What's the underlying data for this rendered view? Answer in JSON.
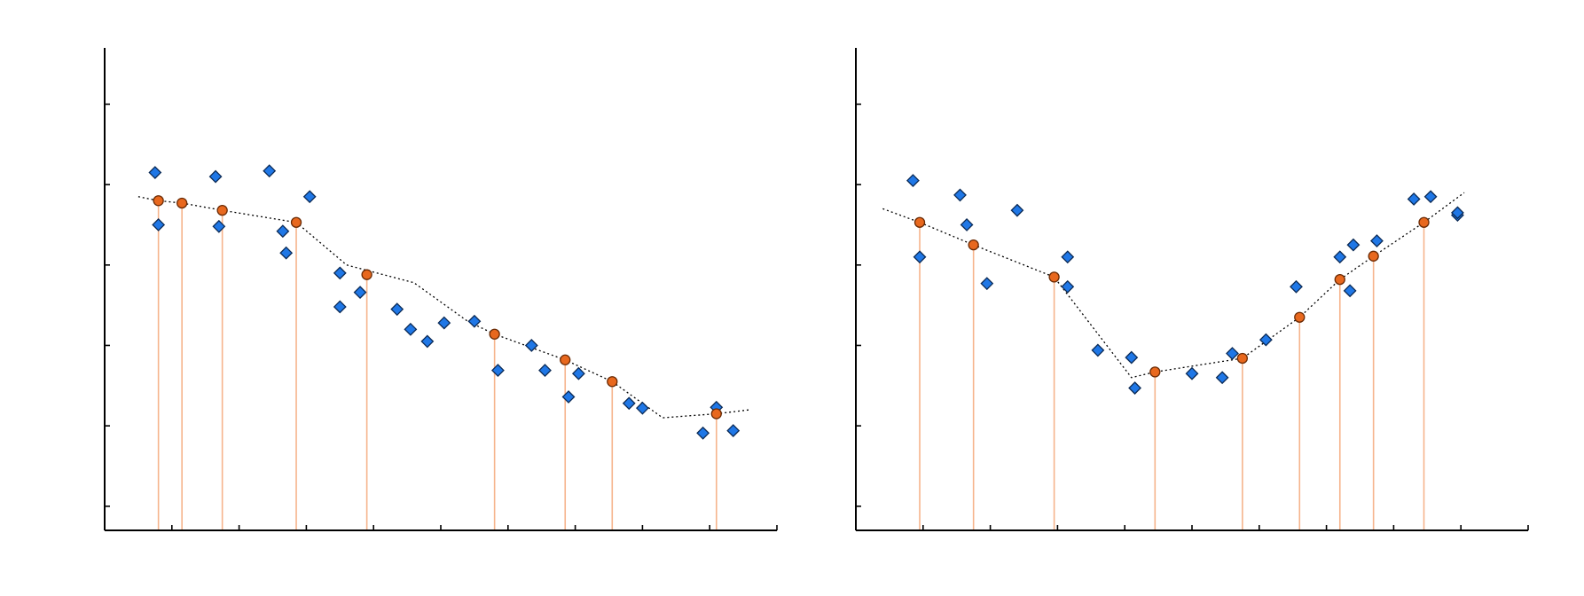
{
  "colors": {
    "observed": "#1f77e6",
    "sampled": "#e8681e",
    "stem": "#f6b48c",
    "fit_line": "#000000",
    "axis": "#000000"
  },
  "chart_data": [
    {
      "type": "scatter",
      "title": "",
      "xlabel": "",
      "ylabel": "",
      "xlim": [
        0,
        10
      ],
      "ylim": [
        0,
        6
      ],
      "xticks": [
        1,
        2,
        3,
        4,
        5,
        6,
        7,
        8,
        9,
        10
      ],
      "yticks": [
        0.3,
        1.3,
        2.3,
        3.3,
        4.3,
        5.3
      ],
      "grid": false,
      "series": [
        {
          "role": "observed",
          "x": [
            0.75,
            0.8,
            1.65,
            1.7,
            2.45,
            2.65,
            2.7,
            3.05,
            3.5,
            3.5,
            3.8,
            4.35,
            4.55,
            4.8,
            5.05,
            5.5,
            5.85,
            6.35,
            6.55,
            6.9,
            7.05,
            7.8,
            8.0,
            8.9,
            9.1,
            9.35
          ],
          "y": [
            4.45,
            3.8,
            4.4,
            3.78,
            4.47,
            3.72,
            3.45,
            4.15,
            3.2,
            2.78,
            2.96,
            2.75,
            2.5,
            2.35,
            2.58,
            2.6,
            1.99,
            2.3,
            1.99,
            1.66,
            1.95,
            1.58,
            1.52,
            1.21,
            1.53,
            1.24
          ]
        },
        {
          "role": "sampled",
          "x": [
            0.8,
            1.15,
            1.75,
            2.85,
            3.9,
            5.8,
            6.85,
            7.55,
            9.1
          ],
          "y": [
            4.1,
            4.07,
            3.98,
            3.83,
            3.18,
            2.44,
            2.12,
            1.85,
            1.45
          ]
        },
        {
          "role": "fit",
          "x": [
            0.5,
            0.8,
            1.15,
            1.75,
            2.85,
            3.6,
            4.6,
            5.4,
            5.8,
            6.85,
            7.55,
            8.3,
            9.1,
            9.6
          ],
          "y": [
            4.15,
            4.1,
            4.07,
            3.98,
            3.83,
            3.3,
            3.08,
            2.6,
            2.44,
            2.12,
            1.85,
            1.4,
            1.45,
            1.5
          ]
        }
      ]
    },
    {
      "type": "scatter",
      "title": "",
      "xlabel": "",
      "ylabel": "",
      "xlim": [
        0,
        10
      ],
      "ylim": [
        0,
        6
      ],
      "xticks": [
        1,
        2,
        3,
        4,
        5,
        6,
        7,
        8,
        9,
        10
      ],
      "yticks": [
        0.3,
        1.3,
        2.3,
        3.3,
        4.3,
        5.3
      ],
      "grid": false,
      "series": [
        {
          "role": "observed",
          "x": [
            0.85,
            0.95,
            1.55,
            1.65,
            1.95,
            2.4,
            3.15,
            3.15,
            3.6,
            4.1,
            4.15,
            5.0,
            5.45,
            5.6,
            6.1,
            6.55,
            7.2,
            7.35,
            7.4,
            7.75,
            8.3,
            8.55,
            8.95,
            8.95
          ],
          "y": [
            4.35,
            3.4,
            4.17,
            3.8,
            3.07,
            3.98,
            3.4,
            3.03,
            2.24,
            2.15,
            1.77,
            1.95,
            1.9,
            2.2,
            2.37,
            3.03,
            3.4,
            2.98,
            3.55,
            3.6,
            4.12,
            4.15,
            3.92,
            3.95
          ]
        },
        {
          "role": "sampled",
          "x": [
            0.95,
            1.75,
            2.95,
            4.45,
            5.75,
            6.6,
            7.2,
            7.7,
            8.45
          ],
          "y": [
            3.83,
            3.55,
            3.15,
            1.97,
            2.14,
            2.65,
            3.12,
            3.41,
            3.83
          ]
        },
        {
          "role": "fit",
          "x": [
            0.4,
            0.95,
            1.75,
            2.95,
            4.1,
            4.45,
            5.75,
            6.6,
            7.2,
            7.7,
            8.45,
            9.05
          ],
          "y": [
            4.0,
            3.83,
            3.55,
            3.15,
            1.9,
            1.97,
            2.14,
            2.65,
            3.12,
            3.41,
            3.83,
            4.2
          ]
        }
      ]
    }
  ]
}
